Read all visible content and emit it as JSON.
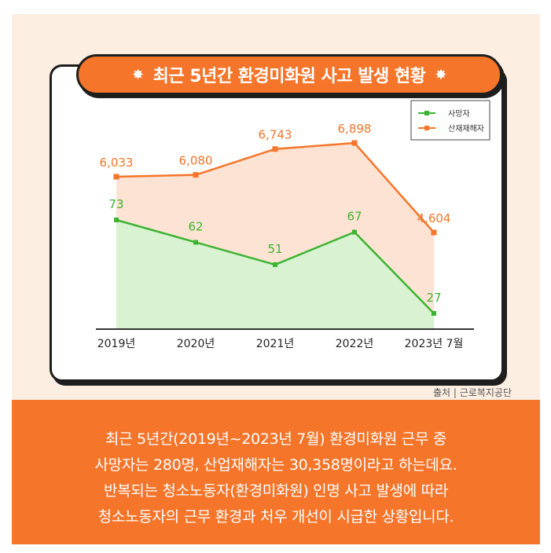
{
  "title": "최근 5년간 환경미화원 사고 발생 현황",
  "title_star": "✸",
  "source": "출처 | 근로복지공단",
  "summary": [
    "최근 5년간(2019년~2023년 7월) 환경미화원 근무 중",
    "사망자는 280명, 산업재해자는 30,358명이라고 하는데요.",
    "반복되는 청소노동자(환경미화원) 인명 사고 발생에 따라",
    "청소노동자의 근무 환경과 처우 개선이 시급한 상황입니다."
  ],
  "colors": {
    "orange": "#f5752a",
    "orange_fill": "#fde3d3",
    "green": "#3cb432",
    "green_fill": "#d8f2d2",
    "background": "#fdeee2"
  },
  "chart_data": {
    "type": "area",
    "categories": [
      "2019년",
      "2020년",
      "2021년",
      "2022년",
      "2023년 7월"
    ],
    "series": [
      {
        "name": "사망자",
        "values": [
          73,
          62,
          51,
          67,
          27
        ],
        "labels": [
          "73",
          "62",
          "51",
          "67",
          "27"
        ],
        "color": "#3cb432"
      },
      {
        "name": "산재재해자",
        "values": [
          6033,
          6080,
          6743,
          6898,
          4604
        ],
        "labels": [
          "6,033",
          "6,080",
          "6,743",
          "6,898",
          "4,604"
        ],
        "color": "#f5752a"
      }
    ],
    "legend_position": "top-right",
    "grid": false
  }
}
